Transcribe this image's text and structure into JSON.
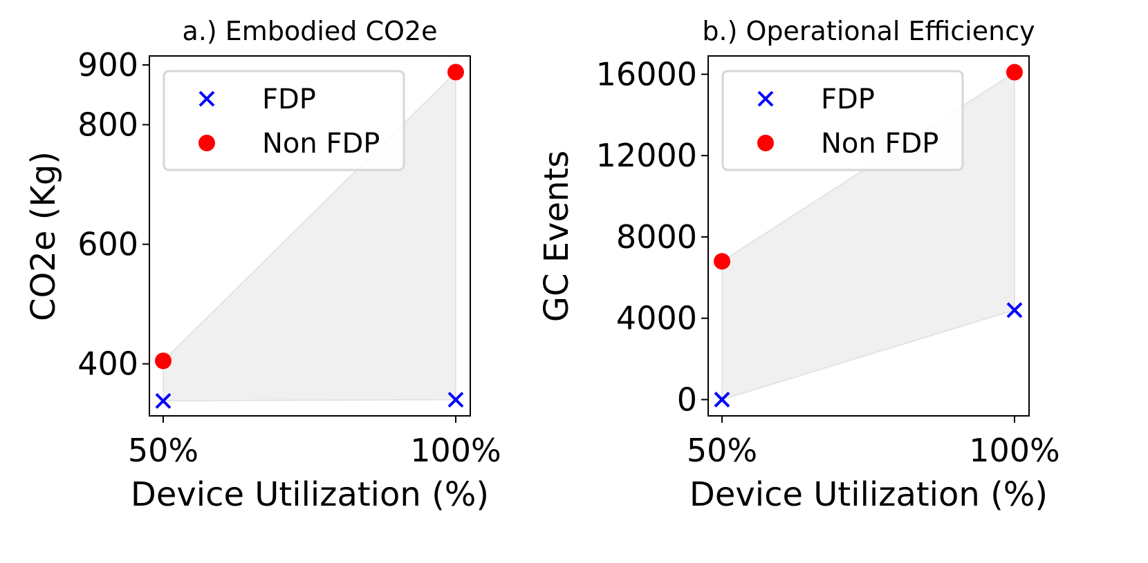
{
  "chart_data": [
    {
      "type": "scatter",
      "title": "a.) Embodied CO2e",
      "xlabel": "Device Utilization (%)",
      "ylabel": "CO2e (Kg)",
      "x_ticks": [
        "50%",
        "100%"
      ],
      "y_ticks": [
        400,
        600,
        800,
        900
      ],
      "ylim": [
        313,
        915
      ],
      "legend_position": "upper-left",
      "fill_region": true,
      "series": [
        {
          "name": "FDP",
          "marker": "x",
          "color": "#0000ff",
          "x": [
            "50%",
            "100%"
          ],
          "y": [
            338,
            340
          ]
        },
        {
          "name": "Non FDP",
          "marker": "o",
          "color": "#ff0000",
          "x": [
            "50%",
            "100%"
          ],
          "y": [
            405,
            888
          ]
        }
      ]
    },
    {
      "type": "scatter",
      "title": "b.) Operational Efficiency",
      "xlabel": "Device Utilization (%)",
      "ylabel": "GC Events",
      "x_ticks": [
        "50%",
        "100%"
      ],
      "y_ticks": [
        0,
        4000,
        8000,
        12000,
        16000
      ],
      "ylim": [
        -800,
        16900
      ],
      "legend_position": "upper-left",
      "fill_region": true,
      "series": [
        {
          "name": "FDP",
          "marker": "x",
          "color": "#0000ff",
          "x": [
            "50%",
            "100%"
          ],
          "y": [
            0,
            4400
          ]
        },
        {
          "name": "Non FDP",
          "marker": "o",
          "color": "#ff0000",
          "x": [
            "50%",
            "100%"
          ],
          "y": [
            6800,
            16100
          ]
        }
      ]
    }
  ]
}
